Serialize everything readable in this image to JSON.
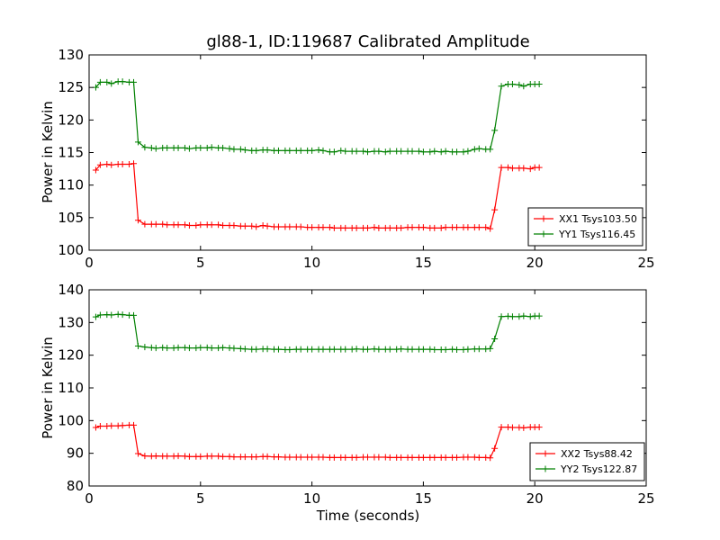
{
  "chart_data": {
    "title": "gl88-1, ID:119687 Calibrated Amplitude",
    "xlabel": "Time (seconds)",
    "x_ticks": [
      "0",
      "5",
      "10",
      "15",
      "20",
      "25"
    ],
    "x": [
      0.3,
      0.5,
      0.8,
      1.0,
      1.3,
      1.5,
      1.8,
      2.0,
      2.2,
      2.5,
      2.8,
      3.0,
      3.3,
      3.5,
      3.8,
      4.0,
      4.3,
      4.5,
      4.8,
      5.0,
      5.3,
      5.5,
      5.8,
      6.0,
      6.3,
      6.5,
      6.8,
      7.0,
      7.3,
      7.5,
      7.8,
      8.0,
      8.3,
      8.5,
      8.8,
      9.0,
      9.3,
      9.5,
      9.8,
      10.0,
      10.3,
      10.5,
      10.8,
      11.0,
      11.3,
      11.5,
      11.8,
      12.0,
      12.3,
      12.5,
      12.8,
      13.0,
      13.3,
      13.5,
      13.8,
      14.0,
      14.3,
      14.5,
      14.8,
      15.0,
      15.3,
      15.5,
      15.8,
      16.0,
      16.3,
      16.5,
      16.8,
      17.0,
      17.3,
      17.5,
      17.8,
      18.0,
      18.2,
      18.5,
      18.8,
      19.0,
      19.3,
      19.5,
      19.8,
      20.0,
      20.2
    ],
    "panels": [
      {
        "type": "line",
        "ylabel": "Power in Kelvin",
        "xlim": [
          0,
          25
        ],
        "ylim": [
          100,
          130
        ],
        "y_ticks": [
          "100",
          "105",
          "110",
          "115",
          "120",
          "125",
          "130"
        ],
        "legend_position": "lower-right",
        "series": [
          {
            "name": "XX1 Tsys103.50",
            "color": "#ff0000",
            "values": [
              112.3,
              113.1,
              113.2,
              113.1,
              113.2,
              113.2,
              113.2,
              113.3,
              104.6,
              104.0,
              104.0,
              104.0,
              104.0,
              103.9,
              103.9,
              103.9,
              103.9,
              103.8,
              103.8,
              103.9,
              103.9,
              103.9,
              103.9,
              103.8,
              103.8,
              103.8,
              103.7,
              103.7,
              103.7,
              103.6,
              103.8,
              103.7,
              103.6,
              103.6,
              103.6,
              103.6,
              103.6,
              103.6,
              103.5,
              103.5,
              103.5,
              103.5,
              103.5,
              103.4,
              103.4,
              103.4,
              103.4,
              103.4,
              103.4,
              103.4,
              103.5,
              103.4,
              103.4,
              103.4,
              103.4,
              103.4,
              103.5,
              103.5,
              103.5,
              103.5,
              103.4,
              103.4,
              103.4,
              103.5,
              103.5,
              103.5,
              103.5,
              103.5,
              103.5,
              103.5,
              103.5,
              103.3,
              106.2,
              112.7,
              112.7,
              112.6,
              112.6,
              112.6,
              112.5,
              112.7,
              112.7
            ]
          },
          {
            "name": "YY1 Tsys116.45",
            "color": "#008000",
            "values": [
              125.0,
              125.8,
              125.8,
              125.6,
              125.9,
              125.9,
              125.8,
              125.8,
              116.6,
              115.8,
              115.7,
              115.6,
              115.7,
              115.7,
              115.7,
              115.7,
              115.7,
              115.6,
              115.7,
              115.7,
              115.7,
              115.8,
              115.7,
              115.7,
              115.6,
              115.5,
              115.5,
              115.4,
              115.3,
              115.3,
              115.4,
              115.4,
              115.3,
              115.3,
              115.3,
              115.3,
              115.3,
              115.3,
              115.3,
              115.3,
              115.4,
              115.3,
              115.1,
              115.1,
              115.3,
              115.2,
              115.2,
              115.2,
              115.2,
              115.1,
              115.2,
              115.2,
              115.1,
              115.2,
              115.2,
              115.2,
              115.2,
              115.2,
              115.2,
              115.1,
              115.1,
              115.2,
              115.1,
              115.2,
              115.1,
              115.1,
              115.1,
              115.2,
              115.5,
              115.6,
              115.5,
              115.5,
              118.4,
              125.2,
              125.5,
              125.5,
              125.4,
              125.2,
              125.5,
              125.5,
              125.5
            ]
          }
        ]
      },
      {
        "type": "line",
        "ylabel": "Power in Kelvin",
        "xlim": [
          0,
          25
        ],
        "ylim": [
          80,
          140
        ],
        "y_ticks": [
          "80",
          "90",
          "100",
          "110",
          "120",
          "130",
          "140"
        ],
        "legend_position": "lower-right",
        "series": [
          {
            "name": "XX2 Tsys88.42",
            "color": "#ff0000",
            "values": [
              97.9,
              98.3,
              98.3,
              98.4,
              98.4,
              98.5,
              98.6,
              98.6,
              89.9,
              89.2,
              89.1,
              89.2,
              89.1,
              89.1,
              89.1,
              89.2,
              89.1,
              89.0,
              89.0,
              89.0,
              89.1,
              89.1,
              89.1,
              89.0,
              89.0,
              88.9,
              88.9,
              88.9,
              88.9,
              88.9,
              89.0,
              89.0,
              88.9,
              88.9,
              88.8,
              88.8,
              88.8,
              88.8,
              88.8,
              88.8,
              88.8,
              88.8,
              88.7,
              88.7,
              88.7,
              88.7,
              88.7,
              88.7,
              88.8,
              88.8,
              88.8,
              88.8,
              88.8,
              88.7,
              88.7,
              88.7,
              88.7,
              88.7,
              88.7,
              88.7,
              88.7,
              88.7,
              88.7,
              88.7,
              88.7,
              88.7,
              88.8,
              88.8,
              88.8,
              88.7,
              88.7,
              88.6,
              91.5,
              98.0,
              98.0,
              97.9,
              97.9,
              97.8,
              98.0,
              98.0,
              98.0
            ]
          },
          {
            "name": "YY2 Tsys122.87",
            "color": "#008000",
            "values": [
              131.7,
              132.3,
              132.4,
              132.3,
              132.5,
              132.4,
              132.2,
              132.2,
              122.8,
              122.5,
              122.3,
              122.2,
              122.3,
              122.2,
              122.2,
              122.3,
              122.3,
              122.2,
              122.2,
              122.3,
              122.3,
              122.2,
              122.2,
              122.3,
              122.2,
              122.1,
              122.0,
              121.9,
              121.8,
              121.8,
              121.9,
              121.9,
              121.8,
              121.8,
              121.7,
              121.7,
              121.8,
              121.8,
              121.8,
              121.8,
              121.8,
              121.8,
              121.8,
              121.8,
              121.8,
              121.8,
              121.8,
              121.9,
              121.8,
              121.8,
              121.9,
              121.8,
              121.8,
              121.8,
              121.8,
              121.9,
              121.8,
              121.8,
              121.8,
              121.8,
              121.8,
              121.7,
              121.7,
              121.7,
              121.8,
              121.7,
              121.7,
              121.8,
              121.9,
              121.9,
              121.9,
              122.0,
              125.0,
              131.8,
              131.9,
              131.8,
              131.8,
              132.0,
              131.8,
              132.0,
              132.0
            ]
          }
        ]
      }
    ]
  }
}
